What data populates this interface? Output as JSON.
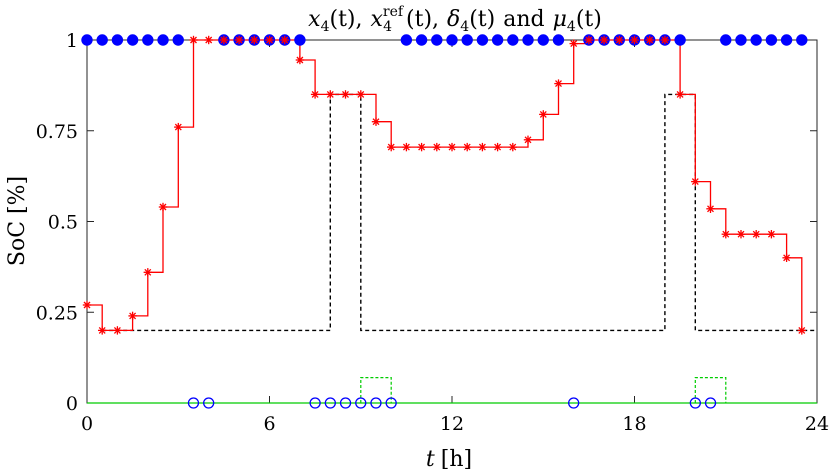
{
  "chart_data": {
    "type": "line",
    "title": {
      "x4": "x",
      "x4_sub": "4",
      "t_arg": "(t)",
      "sep1": ",",
      "xref": "x",
      "xref_sup": "ref",
      "xref_sub": "4",
      "sep2": ",",
      "delta": "δ",
      "delta_sub": "4",
      "and_word": "and",
      "mu": "μ",
      "mu_sub": "4"
    },
    "xlabel": {
      "var": "t",
      "unit": "[h]"
    },
    "ylabel": "SoC [%]",
    "xlim": [
      0,
      24
    ],
    "ylim": [
      0,
      1
    ],
    "xticks": [
      0,
      6,
      12,
      18,
      24
    ],
    "xtick_labels": [
      "0",
      "6",
      "12",
      "18",
      "24"
    ],
    "yticks": [
      0,
      0.25,
      0.5,
      0.75,
      1
    ],
    "ytick_labels": [
      "0",
      "0.25",
      "0.5",
      "0.75",
      "1"
    ],
    "grid": false,
    "series": [
      {
        "key": "soc",
        "style": "stairs-red-star",
        "color": "#ff0000",
        "x": [
          0,
          0.5,
          1,
          1.5,
          2,
          2.5,
          3,
          3.5,
          4,
          4.5,
          5,
          5.5,
          6,
          6.5,
          7,
          7.5,
          8,
          8.5,
          9,
          9.5,
          10,
          10.5,
          11,
          11.5,
          12,
          12.5,
          13,
          13.5,
          14,
          14.5,
          15,
          15.5,
          16,
          16.5,
          17,
          17.5,
          18,
          18.5,
          19,
          19.5,
          20,
          20.5,
          21,
          21.5,
          22,
          22.5,
          23,
          23.5
        ],
        "y": [
          0.27,
          0.2,
          0.2,
          0.24,
          0.36,
          0.54,
          0.76,
          1.0,
          1.0,
          1.0,
          1.0,
          1.0,
          1.0,
          1.0,
          0.945,
          0.85,
          0.85,
          0.85,
          0.85,
          0.775,
          0.705,
          0.705,
          0.705,
          0.705,
          0.705,
          0.705,
          0.705,
          0.705,
          0.705,
          0.725,
          0.795,
          0.88,
          0.99,
          1.0,
          1.0,
          1.0,
          1.0,
          1.0,
          1.0,
          0.85,
          0.61,
          0.535,
          0.465,
          0.465,
          0.465,
          0.465,
          0.4,
          0.2
        ]
      },
      {
        "key": "ref",
        "style": "stairs-black-dashed",
        "color": "#000000",
        "x": [
          0.5,
          8,
          8,
          8.5,
          8.5,
          9,
          9,
          19,
          19,
          20,
          20,
          24
        ],
        "y": [
          0.2,
          0.2,
          0.85,
          0.85,
          0.85,
          0.85,
          0.2,
          0.2,
          0.85,
          0.85,
          0.2,
          0.2
        ]
      },
      {
        "key": "delta",
        "style": "stairs-green-dashed",
        "color": "#00cc00",
        "x": [
          9,
          9,
          10,
          10,
          20,
          20,
          21,
          21
        ],
        "y": [
          0,
          0.07,
          0.07,
          0,
          0,
          0.07,
          0.07,
          0
        ]
      },
      {
        "key": "mu_filled",
        "style": "blue-filled-dots",
        "color": "#0000ff",
        "x": [
          0,
          0.5,
          1,
          1.5,
          2,
          2.5,
          3,
          4.5,
          5,
          5.5,
          6,
          6.5,
          7,
          10.5,
          11,
          11.5,
          12,
          12.5,
          13,
          13.5,
          14,
          14.5,
          15,
          15.5,
          16.5,
          17,
          17.5,
          18,
          18.5,
          19,
          19.5,
          21,
          21.5,
          22,
          22.5,
          23,
          23.5
        ],
        "y": 1.0
      },
      {
        "key": "mu_open",
        "style": "blue-open-circles",
        "color": "#0000ff",
        "x": [
          3.5,
          4,
          7.5,
          8,
          8.5,
          9,
          9.5,
          10,
          16,
          20,
          20.5
        ],
        "y": 0
      }
    ]
  }
}
